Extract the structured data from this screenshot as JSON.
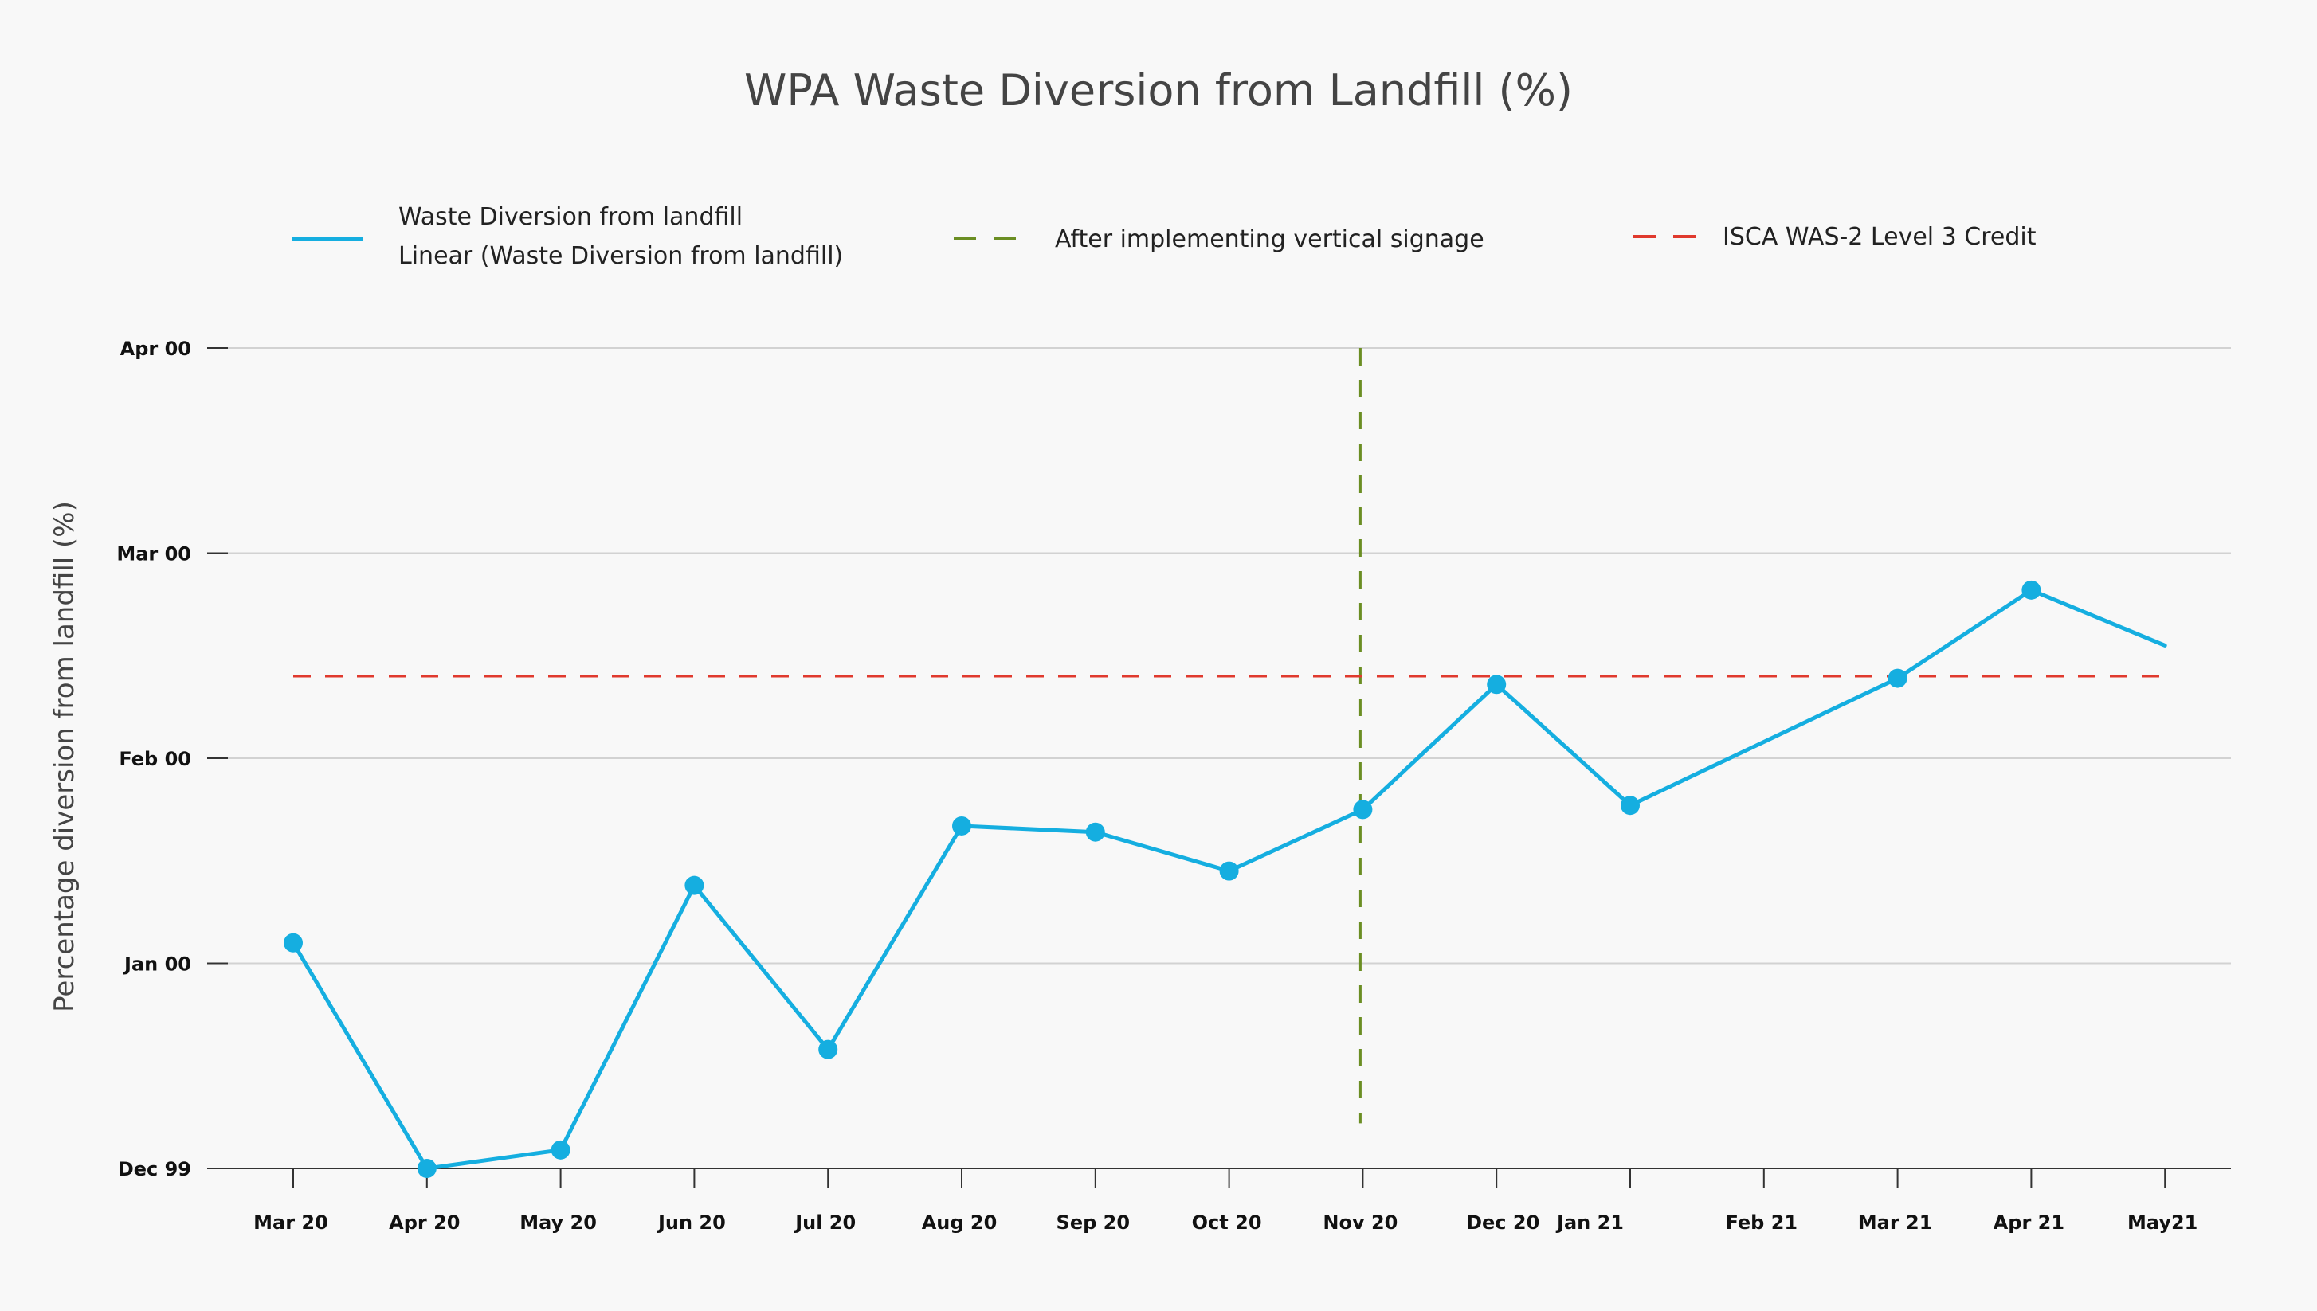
{
  "chart_data": {
    "type": "line",
    "title": "WPA Waste Diversion from Landfill (%)",
    "xlabel": "",
    "ylabel": "Percentage diversion from landfill (%)",
    "x_tick_labels": [
      "Mar 20",
      "Apr 20",
      "May 20",
      "Jun 20",
      "Jul 20",
      "Aug 20",
      "Sep 20",
      "Oct 20",
      "Nov 20",
      "Dec 20",
      "Jan 21",
      "Feb 21",
      "Mar 21",
      "Apr 21",
      "May21"
    ],
    "y_tick_labels": [
      "Dec 99",
      "Jan 00",
      "Feb 00",
      "Mar 00",
      "Apr 00"
    ],
    "ylim": [
      0,
      4
    ],
    "grid": true,
    "legend_placement": "top",
    "legend": [
      {
        "label": "Waste Diversion from landfill",
        "color": "#15aee0",
        "style": "solid"
      },
      {
        "label": "Linear (Waste Diversion from landfill)",
        "color": "#15aee0",
        "style": "solid"
      },
      {
        "label": "After implementing vertical signage",
        "color": "#6b8e23",
        "style": "dashed"
      },
      {
        "label": "ISCA WAS-2 Level 3 Credit",
        "color": "#e03a2e",
        "style": "dashed"
      }
    ],
    "series": [
      {
        "name": "Waste Diversion from landfill",
        "color": "#15aee0",
        "points": [
          {
            "x": 0,
            "y": 1.1,
            "marker": true
          },
          {
            "x": 1,
            "y": 0.0,
            "marker": true
          },
          {
            "x": 2,
            "y": 0.09,
            "marker": true
          },
          {
            "x": 3,
            "y": 1.38,
            "marker": true
          },
          {
            "x": 4,
            "y": 0.58,
            "marker": true
          },
          {
            "x": 5,
            "y": 1.67,
            "marker": true
          },
          {
            "x": 6,
            "y": 1.64,
            "marker": true
          },
          {
            "x": 7,
            "y": 1.45,
            "marker": true
          },
          {
            "x": 8,
            "y": 1.75,
            "marker": true
          },
          {
            "x": 9,
            "y": 2.36,
            "marker": true
          },
          {
            "x": 10,
            "y": 1.77,
            "marker": true
          },
          {
            "x": 12,
            "y": 2.39,
            "marker": true
          },
          {
            "x": 13,
            "y": 2.82,
            "marker": true
          },
          {
            "x": 14,
            "y": 2.55,
            "marker": false
          }
        ]
      }
    ],
    "reference_lines": [
      {
        "name": "After implementing vertical signage",
        "orientation": "vertical",
        "x": 8,
        "y_range": [
          0.22,
          4.0
        ],
        "color": "#6b8e23"
      },
      {
        "name": "ISCA WAS-2 Level 3 Credit",
        "orientation": "horizontal",
        "y": 2.4,
        "x_range": [
          0,
          14
        ],
        "color": "#e03a2e"
      }
    ]
  }
}
